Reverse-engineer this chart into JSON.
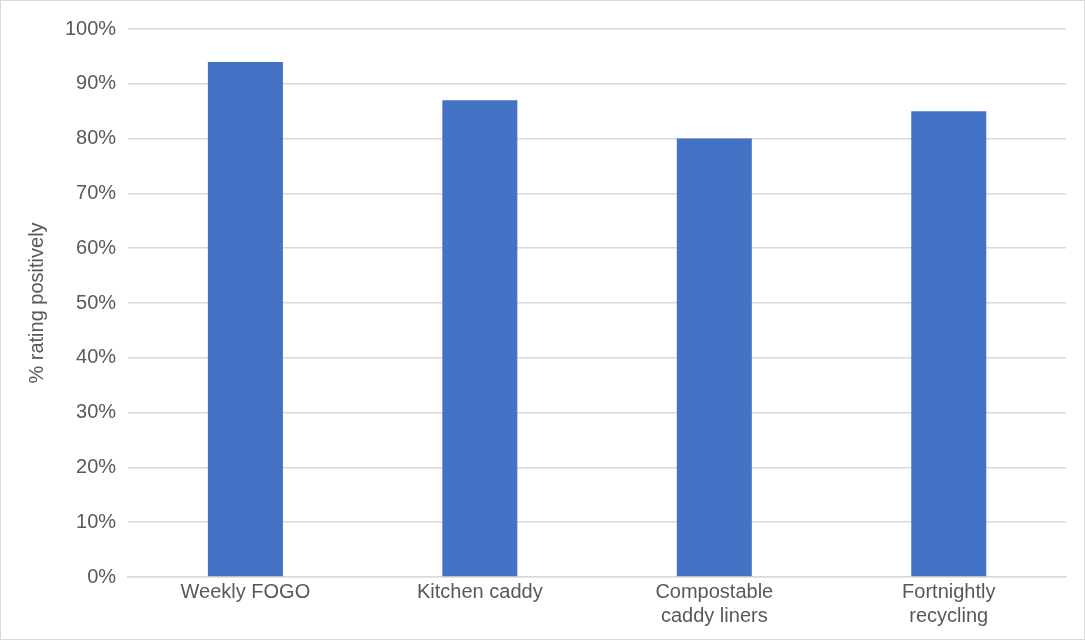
{
  "chart_data": {
    "type": "bar",
    "ylabel": "% rating positively",
    "categories": [
      "Weekly FOGO",
      "Kitchen caddy",
      "Compostable caddy liners",
      "Fortnightly recycling"
    ],
    "values": [
      94,
      87,
      80,
      85
    ],
    "color": "#4472c4",
    "ylim": [
      0,
      100
    ],
    "yticks": [
      {
        "value": 0,
        "label": "0%"
      },
      {
        "value": 10,
        "label": "10%"
      },
      {
        "value": 20,
        "label": "20%"
      },
      {
        "value": 30,
        "label": "30%"
      },
      {
        "value": 40,
        "label": "40%"
      },
      {
        "value": 50,
        "label": "50%"
      },
      {
        "value": 60,
        "label": "60%"
      },
      {
        "value": 70,
        "label": "70%"
      },
      {
        "value": 80,
        "label": "80%"
      },
      {
        "value": 90,
        "label": "90%"
      },
      {
        "value": 100,
        "label": "100%"
      }
    ],
    "grid": "y",
    "legend": false
  }
}
